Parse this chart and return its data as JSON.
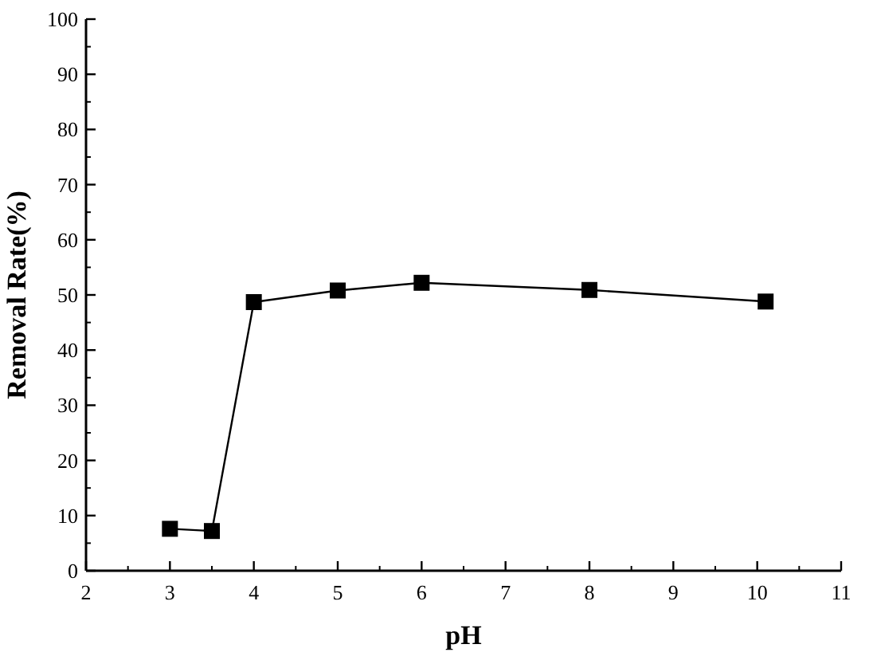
{
  "chart_data": {
    "type": "line",
    "xlabel": "pH",
    "ylabel": "Removal Rate(%)",
    "x": [
      3,
      3.5,
      4,
      5,
      6,
      8,
      10.1
    ],
    "series": [
      {
        "color": "#000000",
        "values": [
          7.6,
          7.2,
          48.7,
          50.8,
          52.2,
          50.9,
          48.8
        ]
      }
    ],
    "xlim": [
      2,
      11
    ],
    "xticks": [
      2,
      3,
      4,
      5,
      6,
      7,
      8,
      9,
      10,
      11
    ],
    "ylim": [
      0,
      100
    ],
    "yticks": [
      0,
      10,
      20,
      30,
      40,
      50,
      60,
      70,
      80,
      90,
      100
    ],
    "marker": "square",
    "line_style": "solid",
    "grid": false
  }
}
